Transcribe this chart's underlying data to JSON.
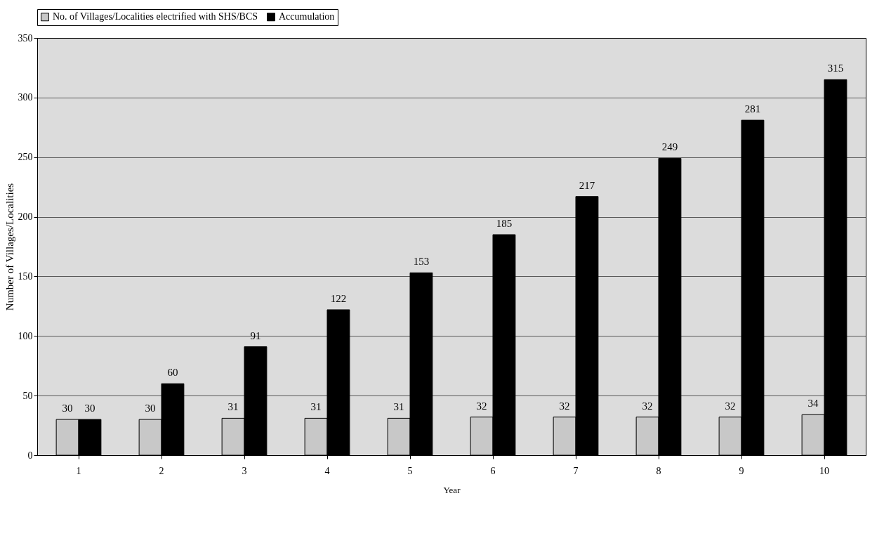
{
  "chart_data": {
    "type": "bar",
    "xlabel": "Year",
    "ylabel": "Number of Villages/Localities",
    "categories": [
      "1",
      "2",
      "3",
      "4",
      "5",
      "6",
      "7",
      "8",
      "9",
      "10"
    ],
    "series": [
      {
        "name": "No. of Villages/Localities electrified with SHS/BCS",
        "color": "#c8c8c8",
        "values": [
          30,
          30,
          31,
          31,
          31,
          32,
          32,
          32,
          32,
          34
        ]
      },
      {
        "name": "Accumulation",
        "color": "#000000",
        "values": [
          30,
          60,
          91,
          122,
          153,
          185,
          217,
          249,
          281,
          315
        ]
      }
    ],
    "ylim": [
      0,
      350
    ],
    "yticks": [
      0,
      50,
      100,
      150,
      200,
      250,
      300,
      350
    ],
    "grid": "y",
    "legend": "top",
    "data_labels": true
  }
}
